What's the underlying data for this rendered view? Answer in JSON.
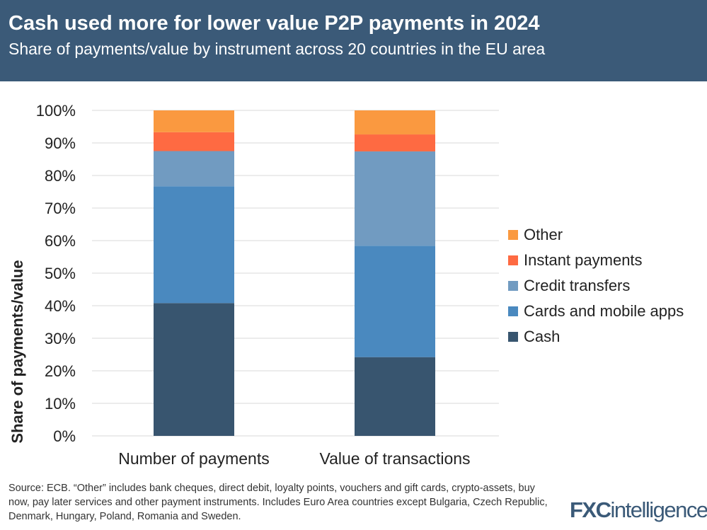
{
  "header": {
    "title": "Cash used more for lower value P2P payments in 2024",
    "subtitle": "Share of payments/value by instrument across 20 countries in the EU area"
  },
  "chart_data": {
    "type": "bar",
    "stacked": true,
    "title": "Cash used more for lower value P2P payments in 2024",
    "subtitle": "Share of payments/value by instrument across 20 countries in the EU area",
    "xlabel": "",
    "ylabel": "Share of payments/value",
    "ylim": [
      0,
      100
    ],
    "yticks": [
      "0%",
      "10%",
      "20%",
      "30%",
      "40%",
      "50%",
      "60%",
      "70%",
      "80%",
      "90%",
      "100%"
    ],
    "grid": true,
    "legend": "right",
    "categories": [
      "Number of payments",
      "Value of transactions"
    ],
    "series": [
      {
        "name": "Cash",
        "color": "#38556f",
        "values": [
          40.8,
          24.2
        ]
      },
      {
        "name": "Cards and mobile apps",
        "color": "#4a89bf",
        "values": [
          35.9,
          34.2
        ]
      },
      {
        "name": "Credit transfers",
        "color": "#719bc1",
        "values": [
          10.8,
          29.0
        ]
      },
      {
        "name": "Instant payments",
        "color": "#fe6a42",
        "values": [
          5.8,
          5.2
        ]
      },
      {
        "name": "Other",
        "color": "#fa9940",
        "values": [
          6.7,
          7.4
        ]
      }
    ]
  },
  "footer": {
    "source": "Source: ECB. “Other” includes bank cheques, direct debit, loyalty points, vouchers and gift cards, crypto-assets, buy now, pay later services and other payment instruments. Includes Euro Area countries except Bulgaria, Czech Republic, Denmark, Hungary, Poland, Romania and Sweden.",
    "logo": "FXCintelligence"
  }
}
